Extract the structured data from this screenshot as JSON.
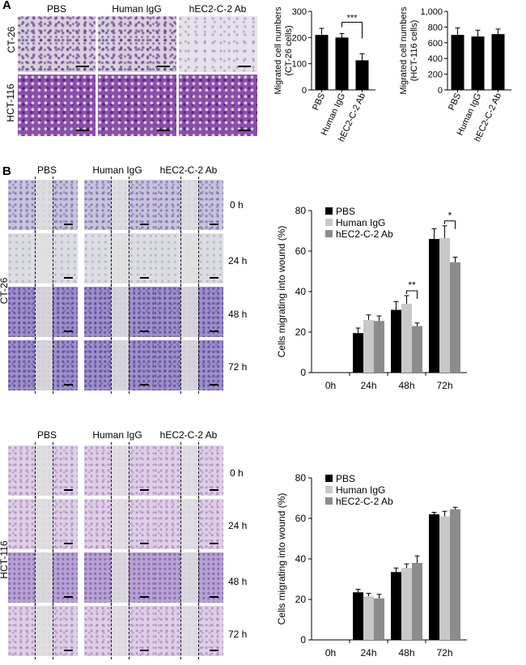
{
  "panel_a": {
    "label": "A",
    "columns": [
      "PBS",
      "Human IgG",
      "hEC2-C-2 Ab"
    ],
    "rows": [
      "CT-26",
      "HCT-116"
    ]
  },
  "panel_b": {
    "label": "B",
    "columns": [
      "PBS",
      "Human IgG",
      "hEC2-C-2 Ab"
    ],
    "blocks": [
      {
        "row_label": "CT-26",
        "times": [
          "0 h",
          "24 h",
          "48 h",
          "72 h"
        ]
      },
      {
        "row_label": "HCT-116",
        "times": [
          "0 h",
          "24 h",
          "48 h",
          "72 h"
        ]
      }
    ]
  },
  "colors": {
    "pbs": "#000000",
    "igg": "#c8c8c8",
    "ab": "#8c8c8c",
    "axis": "#000000"
  },
  "chart_data": [
    {
      "id": "ct26_migration",
      "type": "bar",
      "title": "",
      "ylabel": "Migrated cell numbers\n(CT-26 cells)",
      "xlabel": "",
      "categories": [
        "PBS",
        "Human IgG",
        "hEC2-C-2 Ab"
      ],
      "values": [
        210,
        200,
        113
      ],
      "errors": [
        25,
        15,
        25
      ],
      "ylim": [
        0,
        300
      ],
      "yticks": [
        "0",
        "100",
        "200",
        "300"
      ],
      "annotations": [
        {
          "from": 1,
          "to": 2,
          "text": "***"
        }
      ]
    },
    {
      "id": "hct116_migration",
      "type": "bar",
      "title": "",
      "ylabel": "Migrated cell numbers\n(HCT-116 cells)",
      "xlabel": "",
      "categories": [
        "PBS",
        "Human IgG",
        "hEC2-C-2 Ab"
      ],
      "values": [
        700,
        680,
        710
      ],
      "errors": [
        90,
        80,
        65
      ],
      "ylim": [
        0,
        1000
      ],
      "yticks": [
        "0",
        "200",
        "400",
        "600",
        "800",
        "1,000"
      ],
      "annotations": []
    },
    {
      "id": "ct26_wound",
      "type": "bar",
      "title": "",
      "ylabel": "Cells migrating into wound (%)",
      "xlabel": "",
      "categories": [
        "0h",
        "24h",
        "48h",
        "72h"
      ],
      "series": [
        {
          "name": "PBS",
          "values": [
            0,
            19.5,
            31,
            66
          ],
          "errors": [
            0,
            2.5,
            4,
            5
          ]
        },
        {
          "name": "Human IgG",
          "values": [
            0,
            26,
            34,
            66.5
          ],
          "errors": [
            0,
            2.5,
            4,
            6
          ]
        },
        {
          "name": "hEC2-C-2 Ab",
          "values": [
            0,
            25.5,
            23,
            54.5
          ],
          "errors": [
            0,
            2.5,
            1.5,
            2.5
          ]
        }
      ],
      "ylim": [
        0,
        80
      ],
      "yticks": [
        "0",
        "20",
        "40",
        "60",
        "80"
      ],
      "legend": "top-left",
      "annotations": [
        {
          "category": 2,
          "from": 1,
          "to": 2,
          "text": "**"
        },
        {
          "category": 3,
          "from": 1,
          "to": 2,
          "text": "*"
        }
      ]
    },
    {
      "id": "hct116_wound",
      "type": "bar",
      "title": "",
      "ylabel": "Cells migrating into wound (%)",
      "xlabel": "",
      "categories": [
        "0h",
        "24h",
        "48h",
        "72h"
      ],
      "series": [
        {
          "name": "PBS",
          "values": [
            0,
            23.5,
            33.5,
            62
          ],
          "errors": [
            0,
            1.5,
            2,
            1
          ]
        },
        {
          "name": "Human IgG",
          "values": [
            0,
            21.5,
            35.5,
            61
          ],
          "errors": [
            0,
            1.5,
            2,
            2.5
          ]
        },
        {
          "name": "hEC2-C-2 Ab",
          "values": [
            0,
            20.5,
            38,
            64.5
          ],
          "errors": [
            0,
            2,
            3.5,
            1
          ]
        }
      ],
      "ylim": [
        0,
        80
      ],
      "yticks": [
        "0",
        "20",
        "40",
        "60",
        "80"
      ],
      "legend": "top-left",
      "annotations": []
    }
  ]
}
